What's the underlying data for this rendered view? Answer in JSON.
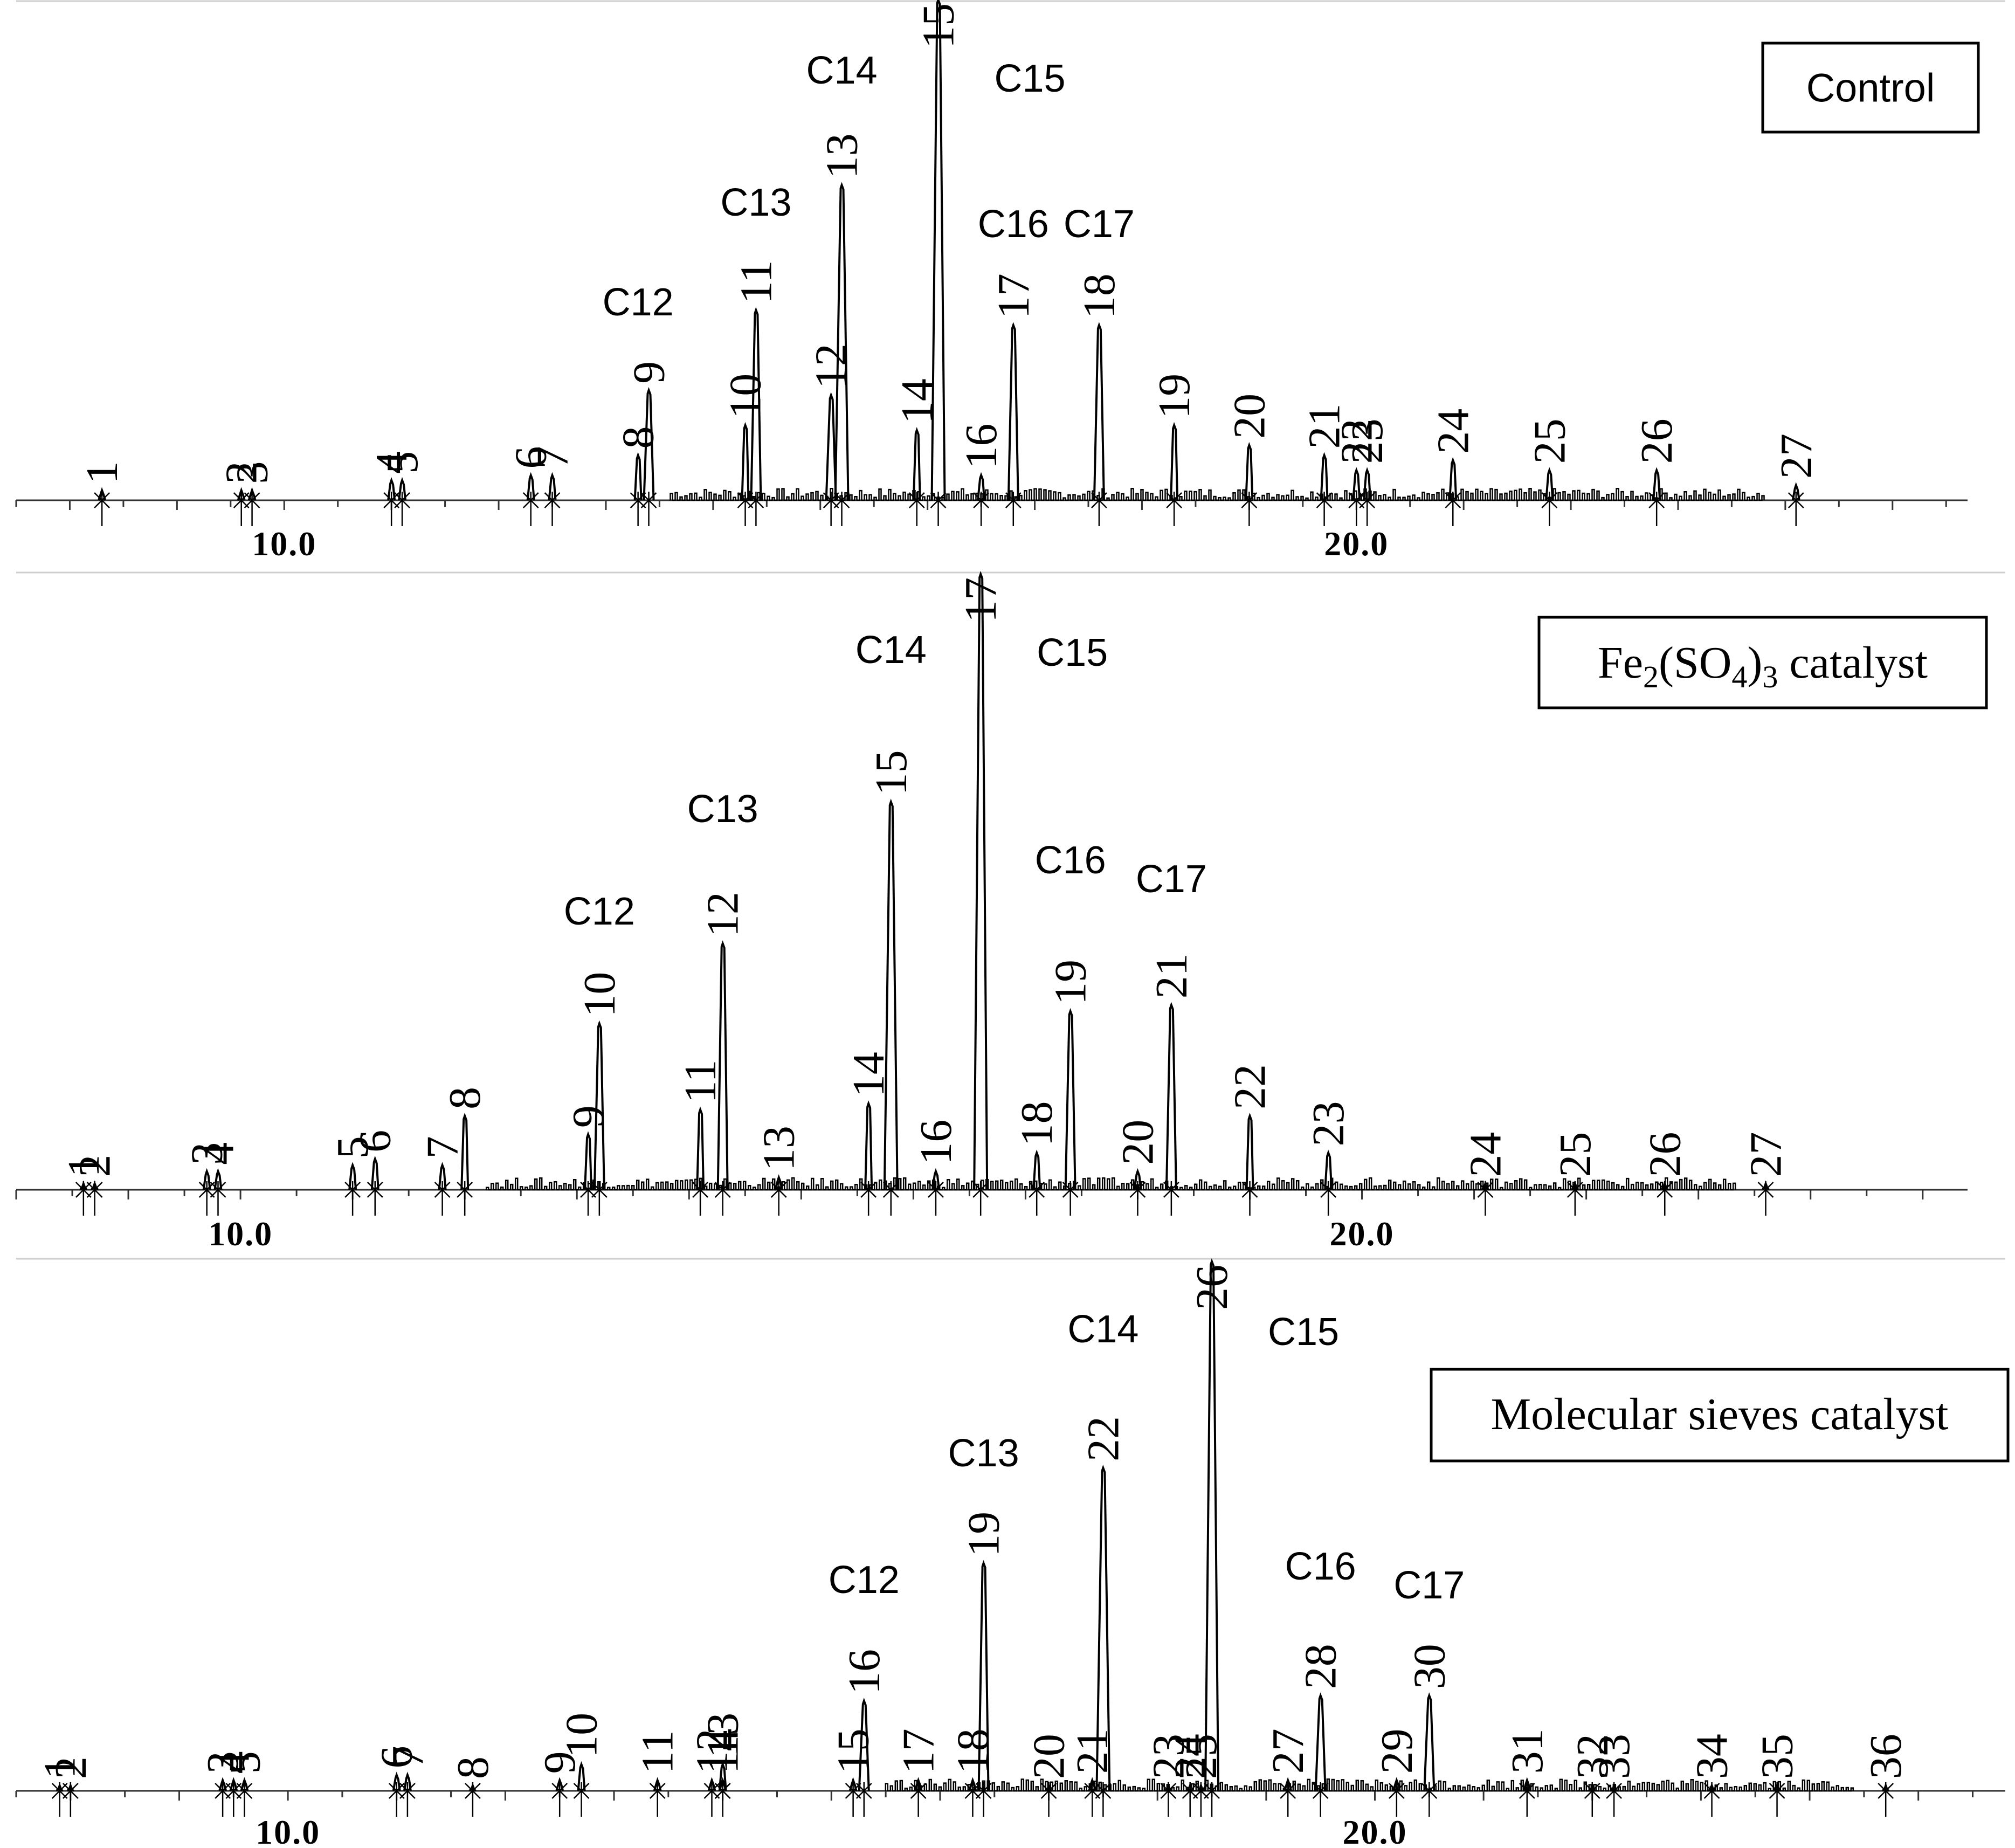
{
  "chart_data": [
    {
      "type": "line",
      "title": "Control",
      "xlabel": "",
      "ylabel": "",
      "xlim": [
        7.5,
        25.7
      ],
      "x_tick_labels": [
        "10.0",
        "20.0"
      ],
      "x_ticks": [
        10.0,
        20.0
      ],
      "peaks": [
        {
          "label": "1",
          "x": 8.3,
          "y": 2
        },
        {
          "label": "2",
          "x": 9.6,
          "y": 2
        },
        {
          "label": "3",
          "x": 9.7,
          "y": 2
        },
        {
          "label": "4",
          "x": 11.0,
          "y": 4
        },
        {
          "label": "5",
          "x": 11.1,
          "y": 4
        },
        {
          "label": "6",
          "x": 12.3,
          "y": 5
        },
        {
          "label": "7",
          "x": 12.5,
          "y": 5
        },
        {
          "label": "8",
          "x": 13.3,
          "y": 9
        },
        {
          "label": "9",
          "x": 13.4,
          "y": 22
        },
        {
          "label": "10",
          "x": 14.3,
          "y": 15
        },
        {
          "label": "11",
          "x": 14.4,
          "y": 38
        },
        {
          "label": "12",
          "x": 15.1,
          "y": 21
        },
        {
          "label": "13",
          "x": 15.2,
          "y": 63
        },
        {
          "label": "14",
          "x": 15.9,
          "y": 14
        },
        {
          "label": "15",
          "x": 16.1,
          "y": 100
        },
        {
          "label": "16",
          "x": 16.5,
          "y": 5
        },
        {
          "label": "17",
          "x": 16.8,
          "y": 35
        },
        {
          "label": "18",
          "x": 17.6,
          "y": 35
        },
        {
          "label": "19",
          "x": 18.3,
          "y": 15
        },
        {
          "label": "20",
          "x": 19.0,
          "y": 11
        },
        {
          "label": "21",
          "x": 19.7,
          "y": 9
        },
        {
          "label": "22",
          "x": 20.0,
          "y": 6
        },
        {
          "label": "23",
          "x": 20.1,
          "y": 6
        },
        {
          "label": "24",
          "x": 20.9,
          "y": 8
        },
        {
          "label": "25",
          "x": 21.8,
          "y": 6
        },
        {
          "label": "26",
          "x": 22.8,
          "y": 6
        },
        {
          "label": "27",
          "x": 24.1,
          "y": 3
        }
      ],
      "carbon_labels": [
        {
          "text": "C12",
          "x": 13.3
        },
        {
          "text": "C13",
          "x": 14.4
        },
        {
          "text": "C14",
          "x": 15.2
        },
        {
          "text": "C15",
          "x": 16.8
        },
        {
          "text": "C16",
          "x": 16.8
        },
        {
          "text": "C17",
          "x": 17.6
        }
      ]
    },
    {
      "type": "line",
      "title_parts": [
        "Fe",
        "2",
        "(SO",
        "4",
        ")",
        "3",
        " catalyst"
      ],
      "xlabel": "",
      "ylabel": "",
      "xlim": [
        8.0,
        25.4
      ],
      "x_tick_labels": [
        "10.0",
        "20.0"
      ],
      "x_ticks": [
        10.0,
        20.0
      ],
      "peaks": [
        {
          "label": "1",
          "x": 8.6,
          "y": 1
        },
        {
          "label": "2",
          "x": 8.7,
          "y": 1
        },
        {
          "label": "3",
          "x": 9.7,
          "y": 3
        },
        {
          "label": "4",
          "x": 9.8,
          "y": 3
        },
        {
          "label": "5",
          "x": 11.0,
          "y": 4
        },
        {
          "label": "6",
          "x": 11.2,
          "y": 5
        },
        {
          "label": "7",
          "x": 11.8,
          "y": 4
        },
        {
          "label": "8",
          "x": 12.0,
          "y": 12
        },
        {
          "label": "9",
          "x": 13.1,
          "y": 9
        },
        {
          "label": "10",
          "x": 13.2,
          "y": 27
        },
        {
          "label": "11",
          "x": 14.1,
          "y": 13
        },
        {
          "label": "12",
          "x": 14.3,
          "y": 40
        },
        {
          "label": "13",
          "x": 14.8,
          "y": 2
        },
        {
          "label": "14",
          "x": 15.6,
          "y": 14
        },
        {
          "label": "15",
          "x": 15.8,
          "y": 63
        },
        {
          "label": "16",
          "x": 16.2,
          "y": 3
        },
        {
          "label": "17",
          "x": 16.6,
          "y": 100
        },
        {
          "label": "18",
          "x": 17.1,
          "y": 6
        },
        {
          "label": "19",
          "x": 17.4,
          "y": 29
        },
        {
          "label": "20",
          "x": 18.0,
          "y": 3
        },
        {
          "label": "21",
          "x": 18.3,
          "y": 30
        },
        {
          "label": "22",
          "x": 19.0,
          "y": 12
        },
        {
          "label": "23",
          "x": 19.7,
          "y": 6
        },
        {
          "label": "24",
          "x": 21.1,
          "y": 1
        },
        {
          "label": "25",
          "x": 21.9,
          "y": 1
        },
        {
          "label": "26",
          "x": 22.7,
          "y": 1
        },
        {
          "label": "27",
          "x": 23.6,
          "y": 1
        }
      ],
      "carbon_labels": [
        {
          "text": "C12",
          "x": 13.2
        },
        {
          "text": "C13",
          "x": 14.3
        },
        {
          "text": "C14",
          "x": 15.8
        },
        {
          "text": "C15",
          "x": 17.3
        },
        {
          "text": "C16",
          "x": 17.4
        },
        {
          "text": "C17",
          "x": 18.3
        }
      ]
    },
    {
      "type": "line",
      "title": "Molecular sieves catalyst",
      "xlabel": "",
      "ylabel": "",
      "xlim": [
        7.5,
        25.8
      ],
      "x_tick_labels": [
        "10.0",
        "20.0"
      ],
      "x_ticks": [
        10.0,
        20.0
      ],
      "peaks": [
        {
          "label": "1",
          "x": 7.9,
          "y": 1
        },
        {
          "label": "2",
          "x": 8.0,
          "y": 1
        },
        {
          "label": "3",
          "x": 9.4,
          "y": 2
        },
        {
          "label": "4",
          "x": 9.5,
          "y": 2
        },
        {
          "label": "5",
          "x": 9.6,
          "y": 2
        },
        {
          "label": "6",
          "x": 11.0,
          "y": 3
        },
        {
          "label": "7",
          "x": 11.1,
          "y": 3
        },
        {
          "label": "8",
          "x": 11.7,
          "y": 1
        },
        {
          "label": "9",
          "x": 12.5,
          "y": 2
        },
        {
          "label": "10",
          "x": 12.7,
          "y": 5
        },
        {
          "label": "11",
          "x": 13.4,
          "y": 2
        },
        {
          "label": "12",
          "x": 13.9,
          "y": 2
        },
        {
          "label": "13",
          "x": 14.0,
          "y": 5
        },
        {
          "label": "14",
          "x": 14.0,
          "y": 2
        },
        {
          "label": "15",
          "x": 15.2,
          "y": 2
        },
        {
          "label": "16",
          "x": 15.3,
          "y": 17
        },
        {
          "label": "17",
          "x": 15.8,
          "y": 2
        },
        {
          "label": "18",
          "x": 16.3,
          "y": 2
        },
        {
          "label": "19",
          "x": 16.4,
          "y": 43
        },
        {
          "label": "20",
          "x": 17.0,
          "y": 1
        },
        {
          "label": "21",
          "x": 17.4,
          "y": 2
        },
        {
          "label": "22",
          "x": 17.5,
          "y": 61
        },
        {
          "label": "23",
          "x": 18.1,
          "y": 1
        },
        {
          "label": "24",
          "x": 18.3,
          "y": 1
        },
        {
          "label": "25",
          "x": 18.4,
          "y": 1
        },
        {
          "label": "26",
          "x": 18.5,
          "y": 100
        },
        {
          "label": "27",
          "x": 19.2,
          "y": 2
        },
        {
          "label": "28",
          "x": 19.5,
          "y": 18
        },
        {
          "label": "29",
          "x": 20.2,
          "y": 2
        },
        {
          "label": "30",
          "x": 20.5,
          "y": 18
        },
        {
          "label": "31",
          "x": 21.4,
          "y": 2
        },
        {
          "label": "32",
          "x": 22.0,
          "y": 1
        },
        {
          "label": "33",
          "x": 22.2,
          "y": 1
        },
        {
          "label": "34",
          "x": 23.1,
          "y": 1
        },
        {
          "label": "35",
          "x": 23.7,
          "y": 1
        },
        {
          "label": "36",
          "x": 24.7,
          "y": 1
        }
      ],
      "carbon_labels": [
        {
          "text": "C12",
          "x": 15.3
        },
        {
          "text": "C13",
          "x": 16.4
        },
        {
          "text": "C14",
          "x": 17.5
        },
        {
          "text": "C15",
          "x": 19.0
        },
        {
          "text": "C16",
          "x": 19.5
        },
        {
          "text": "C17",
          "x": 20.5
        }
      ]
    }
  ]
}
